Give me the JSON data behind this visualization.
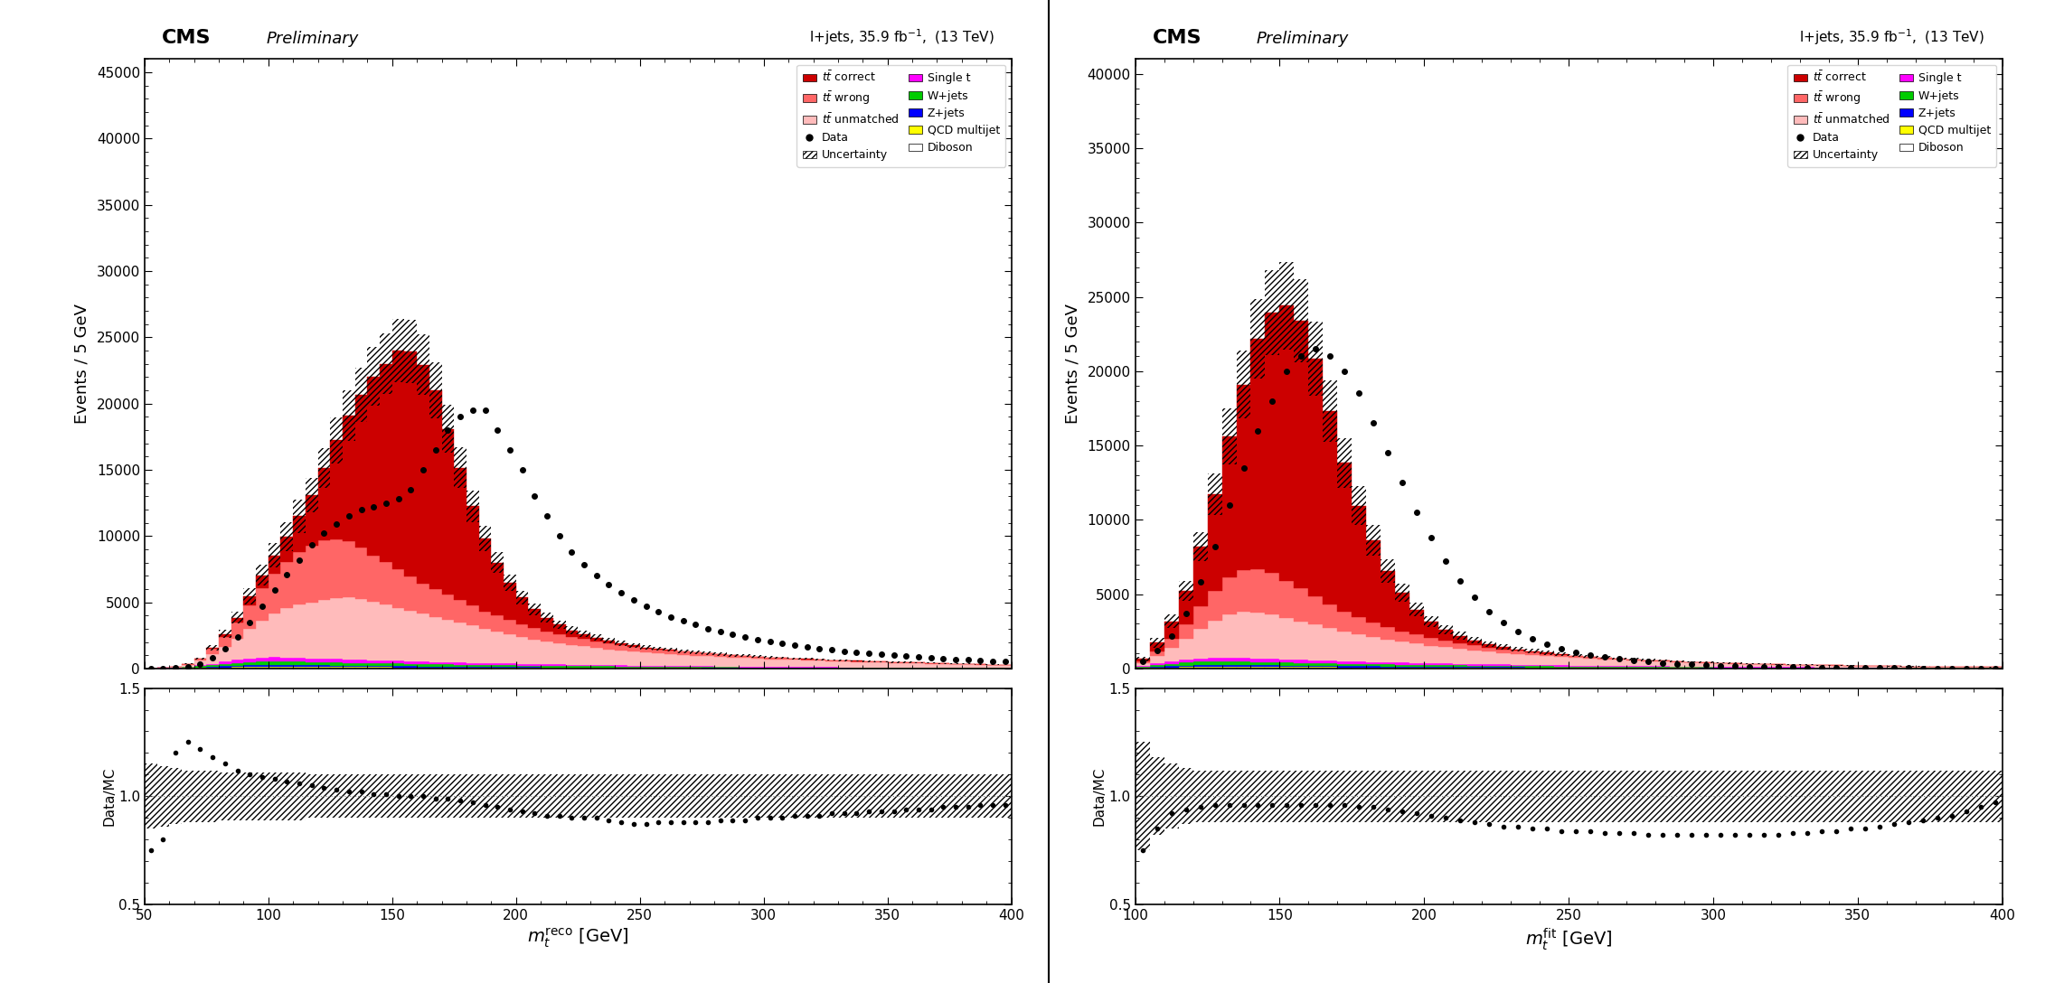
{
  "plot1": {
    "title_cms": "CMS",
    "title_prelim": "Preliminary",
    "title_info": "l+jets, 35.9 fb$^{-1}$,  (13 TeV)",
    "xlabel": "$m_{t}^{\\mathrm{reco}}$ [GeV]",
    "ylabel_main": "Events / 5 GeV",
    "ylabel_ratio": "Data/MC",
    "xmin": 50,
    "xmax": 400,
    "ymin": 0,
    "ymax": 46000,
    "ratio_ymin": 0.5,
    "ratio_ymax": 1.5,
    "bin_edges": [
      50,
      55,
      60,
      65,
      70,
      75,
      80,
      85,
      90,
      95,
      100,
      105,
      110,
      115,
      120,
      125,
      130,
      135,
      140,
      145,
      150,
      155,
      160,
      165,
      170,
      175,
      180,
      185,
      190,
      195,
      200,
      205,
      210,
      215,
      220,
      225,
      230,
      235,
      240,
      245,
      250,
      255,
      260,
      265,
      270,
      275,
      280,
      285,
      290,
      295,
      300,
      305,
      310,
      315,
      320,
      325,
      330,
      335,
      340,
      345,
      350,
      355,
      360,
      365,
      370,
      375,
      380,
      385,
      390,
      395,
      400
    ],
    "tt_correct": [
      0,
      0,
      0,
      0,
      0,
      100,
      200,
      400,
      700,
      1000,
      1400,
      1900,
      2700,
      3800,
      5500,
      7500,
      9500,
      11500,
      13500,
      15000,
      16500,
      17000,
      16500,
      15000,
      12500,
      10000,
      7500,
      5500,
      4000,
      2800,
      2000,
      1400,
      1000,
      700,
      500,
      380,
      270,
      200,
      150,
      110,
      80,
      60,
      50,
      40,
      30,
      25,
      20,
      15,
      12,
      10,
      8,
      6,
      5,
      4,
      3,
      3,
      2,
      2,
      2,
      1,
      1,
      1,
      1,
      1,
      0,
      0,
      0,
      0,
      0,
      0
    ],
    "tt_wrong": [
      0,
      0,
      0,
      50,
      150,
      400,
      800,
      1200,
      1800,
      2400,
      3000,
      3500,
      4000,
      4300,
      4500,
      4400,
      4200,
      3900,
      3500,
      3200,
      2900,
      2600,
      2300,
      2100,
      1900,
      1700,
      1500,
      1300,
      1200,
      1100,
      1000,
      900,
      800,
      700,
      600,
      550,
      500,
      450,
      400,
      350,
      300,
      280,
      260,
      240,
      220,
      200,
      185,
      170,
      155,
      145,
      130,
      120,
      110,
      100,
      95,
      90,
      80,
      75,
      70,
      65,
      60,
      55,
      50,
      45,
      40,
      35,
      30,
      25,
      20,
      15
    ],
    "tt_unmatched": [
      0,
      0,
      50,
      150,
      350,
      700,
      1100,
      1600,
      2200,
      2800,
      3300,
      3700,
      4000,
      4200,
      4400,
      4600,
      4700,
      4600,
      4400,
      4200,
      4000,
      3800,
      3600,
      3400,
      3200,
      3000,
      2800,
      2600,
      2400,
      2200,
      2000,
      1850,
      1700,
      1600,
      1500,
      1400,
      1300,
      1200,
      1100,
      1050,
      1000,
      950,
      900,
      850,
      800,
      760,
      720,
      680,
      650,
      620,
      580,
      555,
      530,
      500,
      475,
      450,
      430,
      410,
      390,
      370,
      350,
      335,
      320,
      305,
      290,
      275,
      260,
      245,
      230,
      215
    ],
    "single_t": [
      0,
      10,
      20,
      40,
      70,
      110,
      160,
      210,
      260,
      290,
      300,
      300,
      290,
      280,
      270,
      260,
      250,
      240,
      230,
      220,
      210,
      200,
      190,
      180,
      170,
      160,
      155,
      145,
      140,
      130,
      125,
      118,
      112,
      107,
      101,
      96,
      91,
      87,
      82,
      78,
      74,
      70,
      67,
      63,
      60,
      57,
      54,
      51,
      48,
      46,
      43,
      41,
      39,
      37,
      35,
      33,
      31,
      29,
      28,
      26,
      25,
      23,
      22,
      21,
      20,
      18,
      17,
      16,
      15,
      14
    ],
    "w_jets": [
      0,
      10,
      25,
      50,
      90,
      130,
      180,
      220,
      260,
      280,
      280,
      270,
      260,
      250,
      240,
      230,
      220,
      215,
      210,
      200,
      195,
      185,
      180,
      170,
      165,
      160,
      150,
      145,
      140,
      130,
      125,
      120,
      115,
      110,
      105,
      100,
      96,
      91,
      87,
      82,
      78,
      75,
      71,
      67,
      64,
      60,
      57,
      54,
      51,
      48,
      46,
      43,
      41,
      39,
      37,
      35,
      33,
      31,
      30,
      28,
      26,
      25,
      24,
      22,
      21,
      20,
      18,
      17,
      16,
      15
    ],
    "z_jets": [
      0,
      5,
      10,
      20,
      35,
      55,
      75,
      95,
      110,
      120,
      125,
      125,
      120,
      115,
      110,
      105,
      100,
      95,
      90,
      86,
      82,
      78,
      74,
      70,
      67,
      63,
      60,
      57,
      54,
      51,
      48,
      46,
      43,
      41,
      39,
      37,
      35,
      33,
      32,
      30,
      28,
      27,
      25,
      24,
      23,
      21,
      20,
      19,
      18,
      17,
      16,
      15,
      14,
      14,
      13,
      12,
      12,
      11,
      10,
      10,
      9,
      9,
      8,
      8,
      7,
      7,
      6,
      6,
      6,
      5
    ],
    "qcd": [
      0,
      5,
      10,
      20,
      30,
      45,
      60,
      75,
      85,
      90,
      90,
      88,
      85,
      82,
      78,
      75,
      72,
      68,
      65,
      62,
      58,
      55,
      52,
      50,
      47,
      44,
      42,
      40,
      38,
      36,
      34,
      32,
      30,
      29,
      27,
      26,
      24,
      23,
      22,
      21,
      20,
      19,
      18,
      17,
      16,
      15,
      14,
      14,
      13,
      12,
      12,
      11,
      10,
      10,
      9,
      9,
      8,
      8,
      7,
      7,
      6,
      6,
      6,
      5,
      5,
      5,
      4,
      4,
      4,
      3
    ],
    "diboson": [
      0,
      2,
      5,
      10,
      15,
      22,
      30,
      37,
      43,
      47,
      48,
      48,
      47,
      45,
      43,
      41,
      39,
      37,
      35,
      34,
      32,
      30,
      29,
      27,
      26,
      24,
      23,
      22,
      21,
      20,
      19,
      18,
      17,
      16,
      15,
      14,
      14,
      13,
      12,
      12,
      11,
      10,
      10,
      9,
      9,
      8,
      8,
      7,
      7,
      6,
      6,
      6,
      5,
      5,
      5,
      4,
      4,
      4,
      4,
      3,
      3,
      3,
      3,
      3,
      2,
      2,
      2,
      2,
      2,
      1
    ],
    "data": [
      0,
      5,
      30,
      100,
      350,
      800,
      1500,
      2400,
      3500,
      4700,
      5900,
      7100,
      8200,
      9300,
      10200,
      10900,
      11500,
      12000,
      12200,
      12500,
      12800,
      13500,
      15000,
      16500,
      18000,
      19000,
      19500,
      19500,
      18000,
      16500,
      15000,
      13000,
      11500,
      10000,
      8800,
      7800,
      7000,
      6300,
      5700,
      5200,
      4700,
      4300,
      3900,
      3600,
      3300,
      3000,
      2800,
      2600,
      2400,
      2200,
      2050,
      1900,
      1750,
      1620,
      1500,
      1390,
      1290,
      1200,
      1120,
      1050,
      980,
      910,
      850,
      790,
      735,
      685,
      640,
      595,
      560,
      520
    ],
    "ratio": [
      0.75,
      0.8,
      1.2,
      1.25,
      1.22,
      1.18,
      1.15,
      1.12,
      1.1,
      1.09,
      1.08,
      1.07,
      1.06,
      1.05,
      1.04,
      1.03,
      1.02,
      1.02,
      1.01,
      1.01,
      1.0,
      1.0,
      1.0,
      0.99,
      0.99,
      0.98,
      0.97,
      0.96,
      0.95,
      0.94,
      0.93,
      0.92,
      0.91,
      0.91,
      0.9,
      0.9,
      0.9,
      0.89,
      0.88,
      0.87,
      0.87,
      0.88,
      0.88,
      0.88,
      0.88,
      0.88,
      0.89,
      0.89,
      0.89,
      0.9,
      0.9,
      0.9,
      0.91,
      0.91,
      0.91,
      0.92,
      0.92,
      0.92,
      0.93,
      0.93,
      0.93,
      0.94,
      0.94,
      0.94,
      0.95,
      0.95,
      0.95,
      0.96,
      0.96,
      0.96
    ],
    "unc_up": [
      0.15,
      0.14,
      0.13,
      0.12,
      0.12,
      0.12,
      0.11,
      0.11,
      0.11,
      0.11,
      0.11,
      0.11,
      0.11,
      0.1,
      0.1,
      0.1,
      0.1,
      0.1,
      0.1,
      0.1,
      0.1,
      0.1,
      0.1,
      0.1,
      0.1,
      0.1,
      0.1,
      0.1,
      0.1,
      0.1,
      0.1,
      0.1,
      0.1,
      0.1,
      0.1,
      0.1,
      0.1,
      0.1,
      0.1,
      0.1,
      0.1,
      0.1,
      0.1,
      0.1,
      0.1,
      0.1,
      0.1,
      0.1,
      0.1,
      0.1,
      0.1,
      0.1,
      0.1,
      0.1,
      0.1,
      0.1,
      0.1,
      0.1,
      0.1,
      0.1,
      0.1,
      0.1,
      0.1,
      0.1,
      0.1,
      0.1,
      0.1,
      0.1,
      0.1,
      0.1
    ],
    "unc_down": [
      0.15,
      0.14,
      0.13,
      0.12,
      0.12,
      0.12,
      0.11,
      0.11,
      0.11,
      0.11,
      0.11,
      0.11,
      0.11,
      0.1,
      0.1,
      0.1,
      0.1,
      0.1,
      0.1,
      0.1,
      0.1,
      0.1,
      0.1,
      0.1,
      0.1,
      0.1,
      0.1,
      0.1,
      0.1,
      0.1,
      0.1,
      0.1,
      0.1,
      0.1,
      0.1,
      0.1,
      0.1,
      0.1,
      0.1,
      0.1,
      0.1,
      0.1,
      0.1,
      0.1,
      0.1,
      0.1,
      0.1,
      0.1,
      0.1,
      0.1,
      0.1,
      0.1,
      0.1,
      0.1,
      0.1,
      0.1,
      0.1,
      0.1,
      0.1,
      0.1,
      0.1,
      0.1,
      0.1,
      0.1,
      0.1,
      0.1,
      0.1,
      0.1,
      0.1,
      0.1
    ]
  },
  "plot2": {
    "title_cms": "CMS",
    "title_prelim": "Preliminary",
    "title_info": "l+jets, 35.9 fb$^{-1}$,  (13 TeV)",
    "xlabel": "$m_{t}^{\\mathrm{fit}}$ [GeV]",
    "ylabel_main": "Events / 5 GeV",
    "ylabel_ratio": "Data/MC",
    "xmin": 100,
    "xmax": 400,
    "ymin": 0,
    "ymax": 41000,
    "ratio_ymin": 0.5,
    "ratio_ymax": 1.5,
    "bin_edges": [
      100,
      105,
      110,
      115,
      120,
      125,
      130,
      135,
      140,
      145,
      150,
      155,
      160,
      165,
      170,
      175,
      180,
      185,
      190,
      195,
      200,
      205,
      210,
      215,
      220,
      225,
      230,
      235,
      240,
      245,
      250,
      255,
      260,
      265,
      270,
      275,
      280,
      285,
      290,
      295,
      300,
      305,
      310,
      315,
      320,
      325,
      330,
      335,
      340,
      345,
      350,
      355,
      360,
      365,
      370,
      375,
      380,
      385,
      390,
      395,
      400
    ],
    "tt_correct": [
      200,
      600,
      1200,
      2200,
      4000,
      6500,
      9500,
      12500,
      15500,
      17500,
      18500,
      18000,
      16000,
      13000,
      10000,
      7500,
      5500,
      3800,
      2600,
      1700,
      1100,
      750,
      500,
      350,
      240,
      170,
      120,
      90,
      65,
      50,
      38,
      28,
      22,
      17,
      13,
      10,
      8,
      6,
      5,
      4,
      3,
      3,
      2,
      2,
      1,
      1,
      1,
      1,
      0,
      0,
      0,
      0,
      0,
      0,
      0,
      0,
      0,
      0,
      0,
      0
    ],
    "tt_wrong": [
      100,
      300,
      600,
      1000,
      1500,
      2000,
      2500,
      2800,
      2900,
      2800,
      2500,
      2200,
      1900,
      1600,
      1350,
      1150,
      980,
      820,
      700,
      600,
      510,
      440,
      380,
      330,
      280,
      245,
      210,
      185,
      160,
      140,
      120,
      105,
      90,
      80,
      70,
      60,
      53,
      46,
      40,
      35,
      30,
      26,
      23,
      20,
      17,
      15,
      13,
      11,
      10,
      9,
      7,
      6,
      6,
      5,
      4,
      4,
      3,
      3,
      2,
      2
    ],
    "tt_unmatched": [
      200,
      500,
      900,
      1400,
      2000,
      2500,
      2900,
      3100,
      3100,
      3000,
      2800,
      2600,
      2400,
      2200,
      2000,
      1850,
      1700,
      1550,
      1420,
      1300,
      1190,
      1090,
      1000,
      920,
      840,
      775,
      715,
      655,
      605,
      555,
      510,
      470,
      435,
      400,
      370,
      340,
      315,
      290,
      268,
      248,
      228,
      210,
      194,
      180,
      165,
      152,
      140,
      130,
      120,
      111,
      102,
      95,
      87,
      81,
      74,
      69,
      63,
      58,
      54,
      50
    ],
    "single_t": [
      50,
      110,
      160,
      200,
      230,
      240,
      240,
      235,
      225,
      215,
      205,
      195,
      185,
      175,
      165,
      156,
      148,
      140,
      132,
      125,
      118,
      112,
      106,
      100,
      95,
      90,
      85,
      81,
      76,
      72,
      68,
      65,
      61,
      58,
      55,
      52,
      49,
      46,
      44,
      41,
      39,
      37,
      35,
      33,
      31,
      30,
      28,
      27,
      25,
      24,
      22,
      21,
      20,
      19,
      18,
      17,
      16,
      15,
      14,
      14
    ],
    "w_jets": [
      50,
      110,
      160,
      200,
      225,
      235,
      235,
      230,
      220,
      210,
      200,
      190,
      180,
      170,
      162,
      153,
      145,
      138,
      130,
      123,
      116,
      110,
      104,
      99,
      93,
      88,
      84,
      79,
      75,
      71,
      67,
      64,
      60,
      57,
      54,
      51,
      48,
      46,
      43,
      41,
      39,
      37,
      35,
      33,
      31,
      30,
      28,
      26,
      25,
      24,
      22,
      21,
      20,
      19,
      18,
      17,
      16,
      15,
      14,
      13
    ],
    "z_jets": [
      25,
      55,
      80,
      100,
      112,
      118,
      118,
      115,
      110,
      105,
      100,
      95,
      90,
      85,
      81,
      77,
      73,
      69,
      65,
      62,
      58,
      55,
      52,
      50,
      47,
      44,
      42,
      40,
      38,
      36,
      34,
      32,
      30,
      29,
      27,
      26,
      24,
      23,
      22,
      21,
      20,
      19,
      18,
      17,
      16,
      15,
      14,
      14,
      13,
      12,
      12,
      11,
      10,
      10,
      9,
      9,
      8,
      8,
      7,
      7
    ],
    "qcd": [
      15,
      35,
      50,
      65,
      73,
      77,
      77,
      75,
      72,
      68,
      65,
      62,
      58,
      55,
      52,
      50,
      47,
      44,
      42,
      40,
      38,
      36,
      34,
      32,
      30,
      29,
      27,
      26,
      24,
      23,
      22,
      21,
      20,
      19,
      18,
      17,
      16,
      15,
      14,
      14,
      13,
      12,
      12,
      11,
      10,
      10,
      9,
      9,
      8,
      8,
      7,
      7,
      6,
      6,
      6,
      5,
      5,
      5,
      4,
      4
    ],
    "diboson": [
      8,
      18,
      26,
      32,
      37,
      39,
      39,
      38,
      36,
      34,
      33,
      31,
      29,
      28,
      26,
      25,
      23,
      22,
      21,
      20,
      19,
      18,
      17,
      16,
      15,
      14,
      14,
      13,
      12,
      12,
      11,
      10,
      10,
      9,
      9,
      8,
      8,
      7,
      7,
      6,
      6,
      6,
      5,
      5,
      5,
      4,
      4,
      4,
      3,
      3,
      3,
      3,
      2,
      2,
      2,
      2,
      2,
      2,
      1,
      1
    ],
    "data": [
      500,
      1200,
      2200,
      3700,
      5800,
      8200,
      11000,
      13500,
      16000,
      18000,
      20000,
      21000,
      21500,
      21000,
      20000,
      18500,
      16500,
      14500,
      12500,
      10500,
      8800,
      7200,
      5900,
      4800,
      3800,
      3100,
      2500,
      2000,
      1650,
      1350,
      1100,
      920,
      770,
      640,
      540,
      450,
      380,
      320,
      270,
      230,
      195,
      165,
      140,
      120,
      100,
      85,
      72,
      62,
      52,
      44,
      38,
      32,
      27,
      23,
      20,
      17,
      14,
      12,
      10,
      9
    ],
    "ratio": [
      0.75,
      0.85,
      0.92,
      0.94,
      0.95,
      0.96,
      0.96,
      0.96,
      0.96,
      0.96,
      0.96,
      0.96,
      0.96,
      0.96,
      0.96,
      0.95,
      0.95,
      0.94,
      0.93,
      0.92,
      0.91,
      0.9,
      0.89,
      0.88,
      0.87,
      0.86,
      0.86,
      0.85,
      0.85,
      0.84,
      0.84,
      0.84,
      0.83,
      0.83,
      0.83,
      0.82,
      0.82,
      0.82,
      0.82,
      0.82,
      0.82,
      0.82,
      0.82,
      0.82,
      0.82,
      0.83,
      0.83,
      0.84,
      0.84,
      0.85,
      0.85,
      0.86,
      0.87,
      0.88,
      0.89,
      0.9,
      0.91,
      0.93,
      0.95,
      0.97
    ],
    "unc_up": [
      0.25,
      0.18,
      0.15,
      0.13,
      0.12,
      0.12,
      0.12,
      0.12,
      0.12,
      0.12,
      0.12,
      0.12,
      0.12,
      0.12,
      0.12,
      0.12,
      0.12,
      0.12,
      0.12,
      0.12,
      0.12,
      0.12,
      0.12,
      0.12,
      0.12,
      0.12,
      0.12,
      0.12,
      0.12,
      0.12,
      0.12,
      0.12,
      0.12,
      0.12,
      0.12,
      0.12,
      0.12,
      0.12,
      0.12,
      0.12,
      0.12,
      0.12,
      0.12,
      0.12,
      0.12,
      0.12,
      0.12,
      0.12,
      0.12,
      0.12,
      0.12,
      0.12,
      0.12,
      0.12,
      0.12,
      0.12,
      0.12,
      0.12,
      0.12,
      0.12
    ],
    "unc_down": [
      0.25,
      0.18,
      0.15,
      0.13,
      0.12,
      0.12,
      0.12,
      0.12,
      0.12,
      0.12,
      0.12,
      0.12,
      0.12,
      0.12,
      0.12,
      0.12,
      0.12,
      0.12,
      0.12,
      0.12,
      0.12,
      0.12,
      0.12,
      0.12,
      0.12,
      0.12,
      0.12,
      0.12,
      0.12,
      0.12,
      0.12,
      0.12,
      0.12,
      0.12,
      0.12,
      0.12,
      0.12,
      0.12,
      0.12,
      0.12,
      0.12,
      0.12,
      0.12,
      0.12,
      0.12,
      0.12,
      0.12,
      0.12,
      0.12,
      0.12,
      0.12,
      0.12,
      0.12,
      0.12,
      0.12,
      0.12,
      0.12,
      0.12,
      0.12,
      0.12
    ]
  },
  "colors": {
    "tt_correct": "#cc0000",
    "tt_wrong": "#ff6666",
    "tt_unmatched": "#ffbbbb",
    "single_t": "#ff00ff",
    "w_jets": "#00cc00",
    "z_jets": "#0000ff",
    "qcd": "#ffff00",
    "diboson": "#ffffff",
    "data": "#000000",
    "uncertainty": "#000000"
  }
}
